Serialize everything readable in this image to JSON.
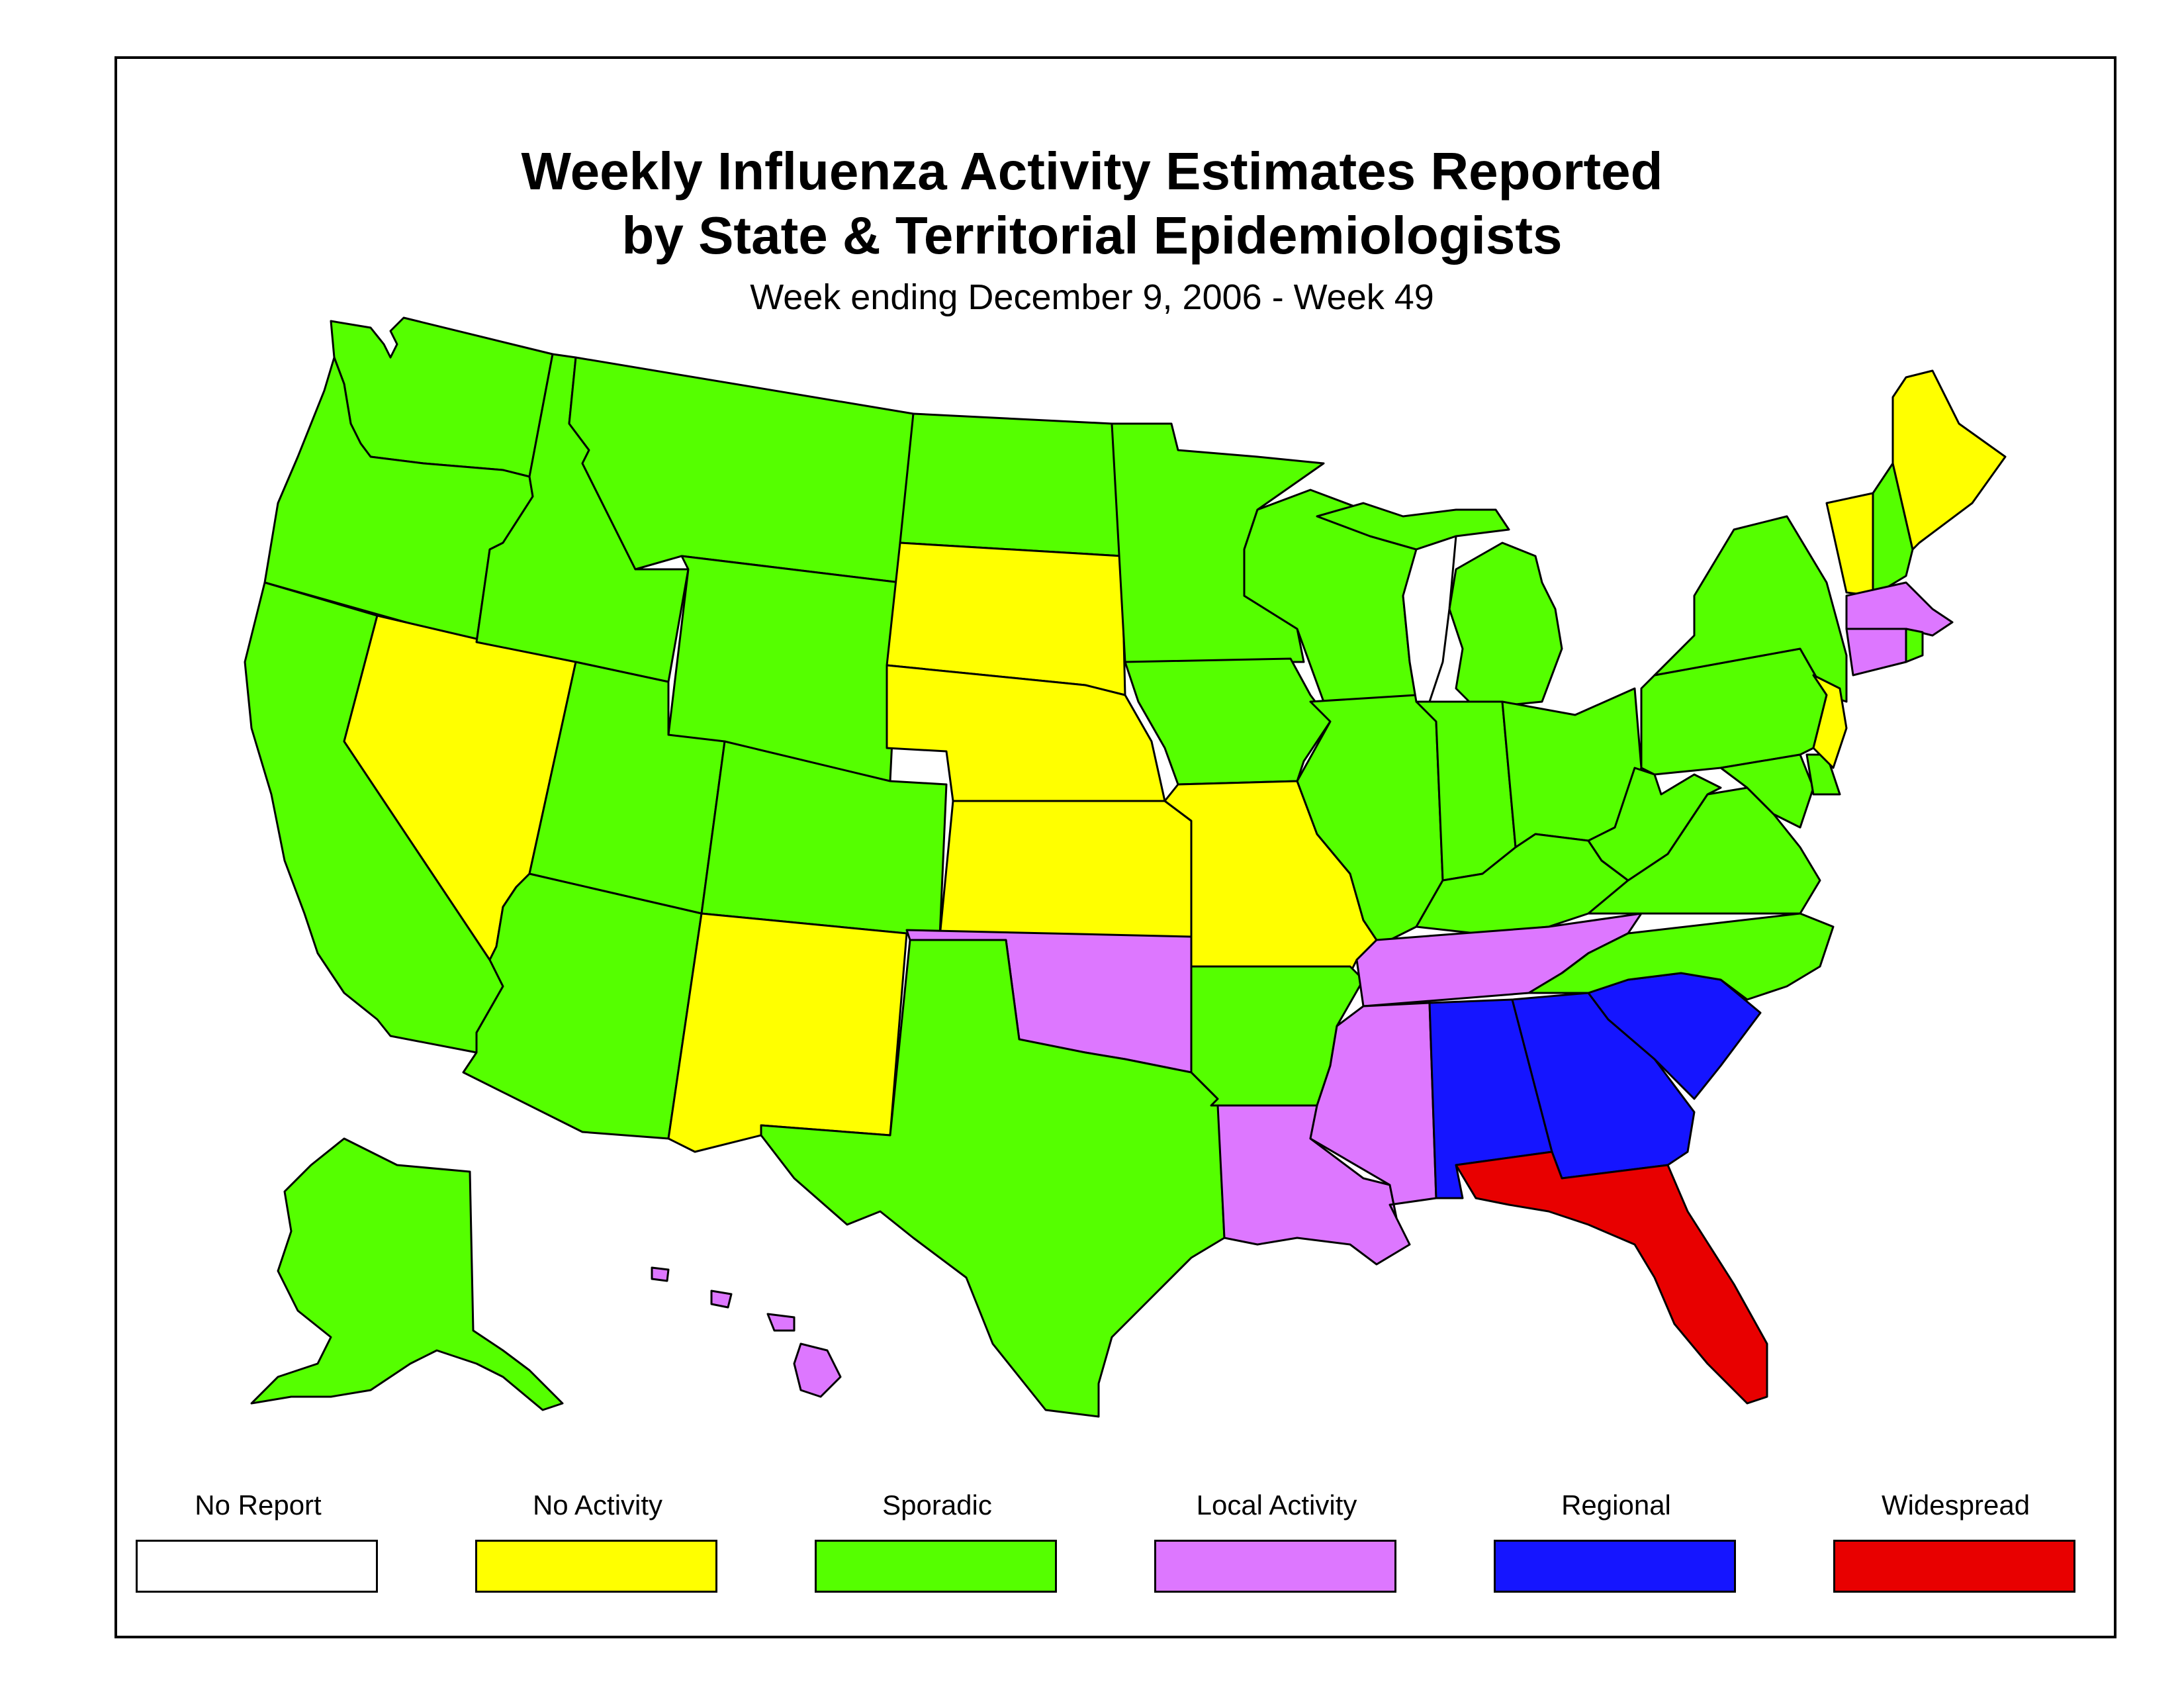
{
  "title": {
    "line1": "Weekly Influenza Activity Estimates Reported",
    "line2": "by State & Territorial Epidemiologists",
    "subtitle": "Week ending December 9, 2006 - Week 49"
  },
  "legend": [
    {
      "label": "No Report",
      "color": "#ffffff"
    },
    {
      "label": "No Activity",
      "color": "#ffff00"
    },
    {
      "label": "Sporadic",
      "color": "#55ff00"
    },
    {
      "label": "Local Activity",
      "color": "#dd77ff"
    },
    {
      "label": "Regional",
      "color": "#1515ff"
    },
    {
      "label": "Widespread",
      "color": "#e80000"
    }
  ],
  "states": {
    "No Activity": [
      "Nevada",
      "New Mexico",
      "South Dakota",
      "Nebraska",
      "Kansas",
      "Missouri",
      "Maine",
      "Vermont",
      "New Jersey"
    ],
    "Sporadic": [
      "Washington",
      "Oregon",
      "California",
      "Idaho",
      "Montana",
      "Wyoming",
      "Utah",
      "Arizona",
      "Colorado",
      "North Dakota",
      "Texas",
      "Minnesota",
      "Iowa",
      "Arkansas",
      "Wisconsin",
      "Illinois",
      "Michigan",
      "Indiana",
      "Ohio",
      "Kentucky",
      "West Virginia",
      "Virginia",
      "North Carolina",
      "Pennsylvania",
      "New York",
      "New Hampshire",
      "Maryland",
      "Delaware",
      "Rhode Island",
      "Alaska"
    ],
    "Local Activity": [
      "Oklahoma",
      "Louisiana",
      "Mississippi",
      "Tennessee",
      "Massachusetts",
      "Connecticut",
      "Hawaii"
    ],
    "Regional": [
      "Alabama",
      "Georgia",
      "South Carolina"
    ],
    "Widespread": [
      "Florida"
    ]
  }
}
